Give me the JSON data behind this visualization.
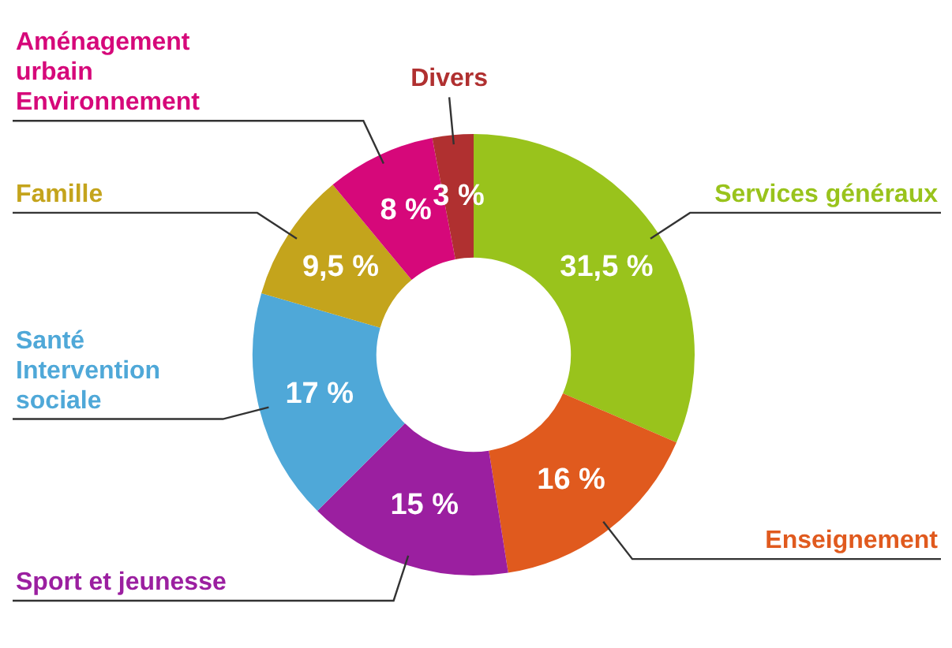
{
  "chart_data": {
    "type": "donut",
    "categories": [
      "Services généraux",
      "Enseignement",
      "Sport et jeunesse",
      "Santé\nIntervention\nsociale",
      "Famille",
      "Aménagement\nurbain\nEnvironnement",
      "Divers"
    ],
    "values": [
      31.5,
      16,
      15,
      17,
      9.5,
      8,
      3
    ],
    "value_labels": [
      "31,5 %",
      "16 %",
      "15 %",
      "17 %",
      "9,5 %",
      "8 %",
      "3 %"
    ],
    "colors": [
      "#99c31c",
      "#e05a1e",
      "#9b1fa0",
      "#4fa8d8",
      "#c4a41c",
      "#d6087a",
      "#b03030"
    ]
  }
}
